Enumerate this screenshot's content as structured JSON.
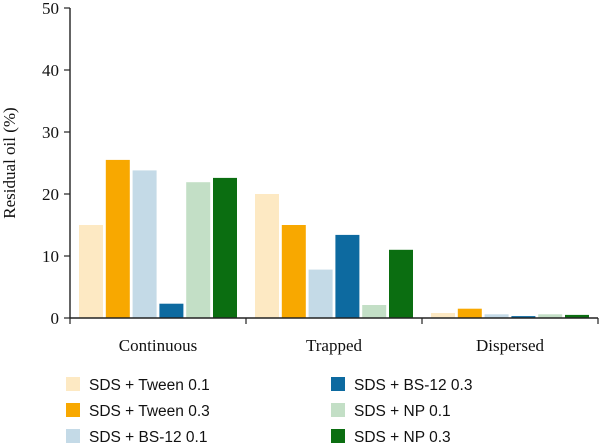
{
  "chart_data": {
    "type": "bar",
    "categories": [
      "Continuous",
      "Trapped",
      "Dispersed"
    ],
    "series": [
      {
        "name": "SDS + Tween 0.1",
        "color": "#fde9c3",
        "values": [
          15.0,
          20.0,
          0.8
        ]
      },
      {
        "name": "SDS + Tween 0.3",
        "color": "#f8a800",
        "values": [
          25.5,
          15.0,
          1.5
        ]
      },
      {
        "name": "SDS + BS-12 0.1",
        "color": "#c4dae7",
        "values": [
          23.8,
          7.8,
          0.6
        ]
      },
      {
        "name": "SDS + BS-12 0.3",
        "color": "#0d6aa0",
        "values": [
          2.3,
          13.4,
          0.3
        ]
      },
      {
        "name": "SDS + NP 0.1",
        "color": "#c3dfc6",
        "values": [
          21.9,
          2.1,
          0.6
        ]
      },
      {
        "name": "SDS + NP 0.3",
        "color": "#0b6e11",
        "values": [
          22.6,
          11.0,
          0.5
        ]
      }
    ],
    "ylabel": "Residual oil (%)",
    "xlabel": "",
    "ylim": [
      0,
      50
    ],
    "yticks": [
      "0",
      "10",
      "20",
      "30",
      "40",
      "50"
    ],
    "grid": false,
    "legend_position": "bottom"
  }
}
